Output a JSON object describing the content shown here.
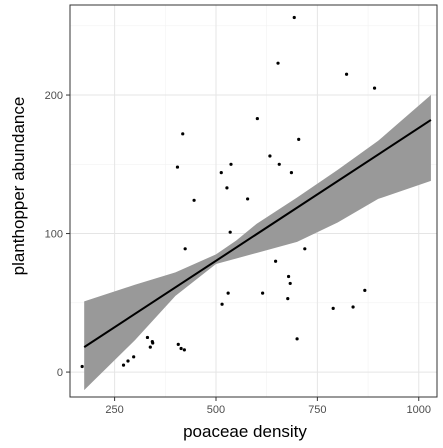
{
  "chart_data": {
    "type": "scatter",
    "title": "",
    "xlabel": "poaceae density",
    "ylabel": "planthopper abundance",
    "xlim": [
      140,
      1045
    ],
    "ylim": [
      -18,
      265
    ],
    "x_ticks": [
      250,
      500,
      750,
      1000
    ],
    "y_ticks": [
      0,
      100,
      200
    ],
    "x_tick_labels": [
      "250",
      "500",
      "750",
      "1000"
    ],
    "y_tick_labels": [
      "0",
      "100",
      "200"
    ],
    "grid": true,
    "legend": "none",
    "colors": {
      "points": "#000000",
      "fit_line": "#000000",
      "confidence_band": "#999999",
      "grid_major": "#e5e5e5",
      "grid_minor": "#f2f2f2",
      "panel_border": "#333333"
    },
    "series": [
      {
        "type": "scatter",
        "points": [
          {
            "x": 170,
            "y": 4
          },
          {
            "x": 272,
            "y": 5
          },
          {
            "x": 283,
            "y": 8
          },
          {
            "x": 297,
            "y": 11
          },
          {
            "x": 331,
            "y": 25
          },
          {
            "x": 338,
            "y": 18
          },
          {
            "x": 343,
            "y": 22
          },
          {
            "x": 344,
            "y": 21
          },
          {
            "x": 405,
            "y": 148
          },
          {
            "x": 407,
            "y": 20
          },
          {
            "x": 414,
            "y": 17
          },
          {
            "x": 418,
            "y": 172
          },
          {
            "x": 422,
            "y": 16
          },
          {
            "x": 424,
            "y": 89
          },
          {
            "x": 446,
            "y": 124
          },
          {
            "x": 513,
            "y": 144
          },
          {
            "x": 515,
            "y": 49
          },
          {
            "x": 527,
            "y": 133
          },
          {
            "x": 530,
            "y": 57
          },
          {
            "x": 537,
            "y": 150
          },
          {
            "x": 535,
            "y": 101
          },
          {
            "x": 578,
            "y": 125
          },
          {
            "x": 602,
            "y": 183
          },
          {
            "x": 615,
            "y": 57
          },
          {
            "x": 633,
            "y": 156
          },
          {
            "x": 647,
            "y": 80
          },
          {
            "x": 653,
            "y": 223
          },
          {
            "x": 656,
            "y": 150
          },
          {
            "x": 677,
            "y": 53
          },
          {
            "x": 679,
            "y": 69
          },
          {
            "x": 683,
            "y": 64
          },
          {
            "x": 686,
            "y": 144
          },
          {
            "x": 693,
            "y": 256
          },
          {
            "x": 700,
            "y": 24
          },
          {
            "x": 704,
            "y": 168
          },
          {
            "x": 719,
            "y": 89
          },
          {
            "x": 789,
            "y": 46
          },
          {
            "x": 822,
            "y": 215
          },
          {
            "x": 838,
            "y": 47
          },
          {
            "x": 867,
            "y": 59
          },
          {
            "x": 891,
            "y": 205
          }
        ]
      },
      {
        "type": "line",
        "name": "",
        "x": [
          175,
          1030
        ],
        "y": [
          18,
          182
        ]
      },
      {
        "type": "area",
        "x": [
          175,
          300,
          400,
          500,
          550,
          600,
          700,
          800,
          900,
          1030
        ],
        "upper": [
          51,
          63,
          72,
          85,
          95,
          107,
          126,
          146,
          167,
          200
        ],
        "lower": [
          -13,
          23,
          55,
          78,
          82,
          86,
          94,
          108,
          125,
          138
        ]
      }
    ]
  }
}
